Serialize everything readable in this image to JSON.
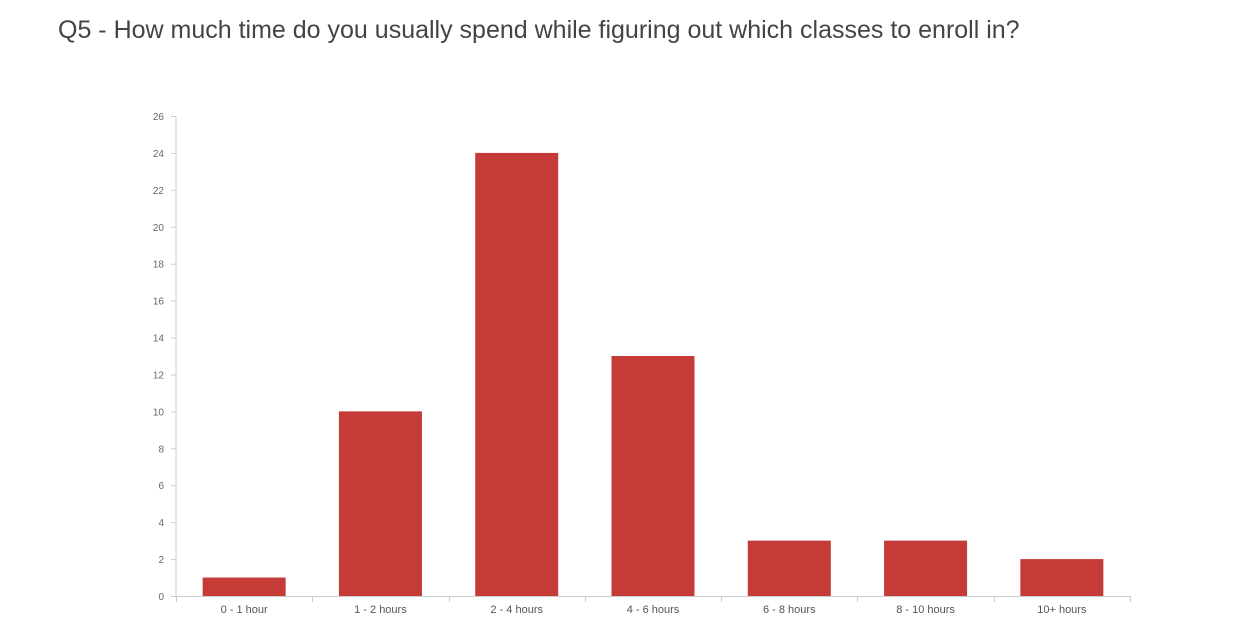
{
  "chart_data": {
    "type": "bar",
    "title": "Q5 - How much time do you usually spend while figuring out which classes to enroll in?",
    "xlabel": "",
    "ylabel": "",
    "categories": [
      "0 - 1 hour",
      "1 - 2 hours",
      "2 - 4 hours",
      "4 - 6 hours",
      "6 - 8 hours",
      "8 - 10 hours",
      "10+ hours"
    ],
    "values": [
      1,
      10,
      24,
      13,
      3,
      3,
      2
    ],
    "ylim": [
      0,
      26
    ],
    "yticks": [
      0,
      2,
      4,
      6,
      8,
      10,
      12,
      14,
      16,
      18,
      20,
      22,
      24,
      26
    ],
    "grid": false,
    "legend": "none",
    "bar_color": "#c53b37",
    "axis_color": "#cccccc"
  }
}
